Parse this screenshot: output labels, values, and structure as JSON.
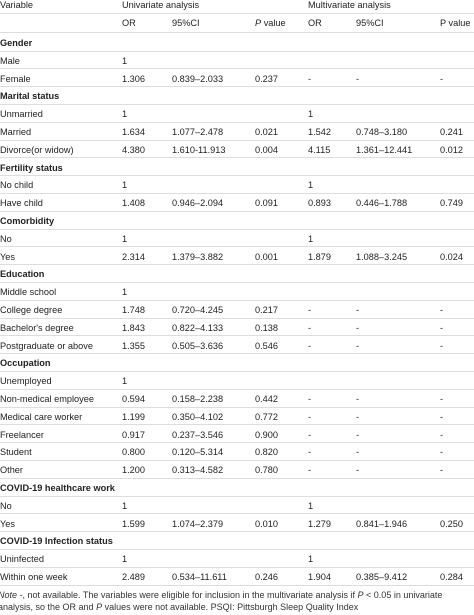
{
  "table": {
    "headers": {
      "variable": "Variable",
      "univariate": "Univariate analysis",
      "multivariate": "Multivariate analysis"
    },
    "univariate_columns": [
      "OR",
      "95%CI",
      {
        "italic": "P",
        "rest": " value"
      }
    ],
    "multivariate_columns": [
      "OR",
      "95%CI",
      "P value"
    ],
    "rows": [
      {
        "heading": "Gender"
      },
      {
        "cells": [
          "Male",
          "1",
          null,
          null,
          null,
          null,
          null
        ]
      },
      {
        "cells": [
          "Female",
          "1.306",
          "0.839–2.033",
          "0.237",
          "-",
          "-",
          "-"
        ]
      },
      {
        "heading": "Marital status"
      },
      {
        "cells": [
          "Unmarried",
          "1",
          null,
          null,
          "1",
          null,
          null
        ]
      },
      {
        "cells": [
          "Married",
          "1.634",
          "1.077–2.478",
          "0.021",
          "1.542",
          "0.748–3.180",
          "0.241"
        ]
      },
      {
        "cells": [
          "Divorce(or widow)",
          "4.380",
          "1.610-11.913",
          "0.004",
          "4.115",
          "1.361–12.441",
          "0.012"
        ]
      },
      {
        "heading": "Fertility status"
      },
      {
        "cells": [
          "No child",
          "1",
          null,
          null,
          "1",
          null,
          null
        ]
      },
      {
        "cells": [
          "Have child",
          "1.408",
          "0.946–2.094",
          "0.091",
          "0.893",
          "0.446–1.788",
          "0.749"
        ]
      },
      {
        "heading": "Comorbidity"
      },
      {
        "cells": [
          "No",
          "1",
          null,
          null,
          "1",
          null,
          null
        ]
      },
      {
        "cells": [
          "Yes",
          "2.314",
          "1.379–3.882",
          "0.001",
          "1.879",
          "1.088–3.245",
          "0.024"
        ]
      },
      {
        "heading": "Education"
      },
      {
        "cells": [
          "Middle school",
          "1",
          null,
          null,
          null,
          null,
          null
        ]
      },
      {
        "cells": [
          "College degree",
          "1.748",
          "0.720–4.245",
          "0.217",
          "-",
          "-",
          "-"
        ]
      },
      {
        "cells": [
          "Bachelor's degree",
          "1.843",
          "0.822–4.133",
          "0.138",
          "-",
          "-",
          "-"
        ]
      },
      {
        "cells": [
          "Postgraduate or above",
          "1.355",
          "0.505–3.636",
          "0.546",
          "-",
          "-",
          "-"
        ]
      },
      {
        "heading": "Occupation"
      },
      {
        "cells": [
          "Unemployed",
          "1",
          null,
          null,
          null,
          null,
          null
        ]
      },
      {
        "cells": [
          "Non-medical employee",
          "0.594",
          "0.158–2.238",
          "0.442",
          "-",
          "-",
          "-"
        ]
      },
      {
        "cells": [
          "Medical care worker",
          "1.199",
          "0.350–4.102",
          "0.772",
          "-",
          "-",
          "-"
        ]
      },
      {
        "cells": [
          "Freelancer",
          "0.917",
          "0.237–3.546",
          "0.900",
          "-",
          "-",
          "-"
        ]
      },
      {
        "cells": [
          "Student",
          "0.800",
          "0.120–5.314",
          "0.820",
          "-",
          "-",
          "-"
        ]
      },
      {
        "cells": [
          "Other",
          "1.200",
          "0.313–4.582",
          "0.780",
          "-",
          "-",
          "-"
        ]
      },
      {
        "heading": "COVID-19 healthcare work"
      },
      {
        "cells": [
          "No",
          "1",
          null,
          null,
          "1",
          null,
          null
        ]
      },
      {
        "cells": [
          "Yes",
          "1.599",
          "1.074–2.379",
          "0.010",
          "1.279",
          "0.841–1.946",
          "0.250"
        ]
      },
      {
        "heading": "COVID-19 Infection status"
      },
      {
        "cells": [
          "Uninfected",
          "1",
          null,
          null,
          "1",
          null,
          null
        ]
      },
      {
        "cells": [
          "Within one week",
          "2.489",
          "0.534–11.611",
          "0.246",
          "1.904",
          "0.385–9.412",
          "0.284"
        ]
      }
    ],
    "note": [
      "Note",
      " -, not available. The variables were eligible for inclusion in the multivariate analysis if ",
      "P",
      " < 0.05 in univariate analysis, so the OR and ",
      "P",
      " values were not available. PSQI: Pittsburgh Sleep Quality Index"
    ]
  }
}
